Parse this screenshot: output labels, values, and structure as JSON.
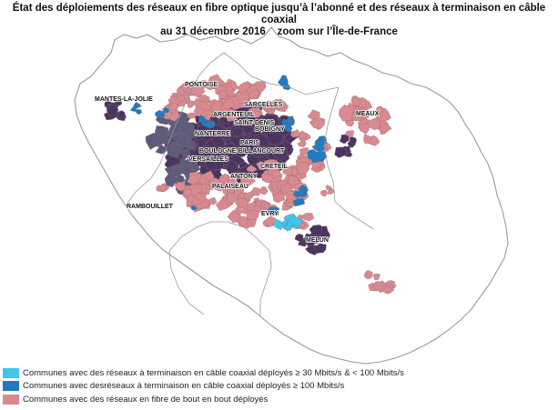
{
  "title": {
    "line1": "État des déploiements des réseaux en fibre optique jusqu’à l’abonné et des réseaux à terminaison en câble coaxial",
    "line2": "au 31 décembre 2016 – zoom sur l’Île-de-France"
  },
  "map": {
    "region": "Île-de-France",
    "cities": [
      {
        "id": "pontoise",
        "label": "PONTOISE"
      },
      {
        "id": "sarcelles",
        "label": "SARCELLES"
      },
      {
        "id": "mantes",
        "label": "MANTES-LA-JOLIE"
      },
      {
        "id": "argenteuil",
        "label": "ARGENTEUIL"
      },
      {
        "id": "saint-denis",
        "label": "SAINT-DENIS"
      },
      {
        "id": "bobigny",
        "label": "BOBIGNY"
      },
      {
        "id": "nanterre",
        "label": "NANTERRE"
      },
      {
        "id": "meaux",
        "label": "MEAUX"
      },
      {
        "id": "paris",
        "label": "PARIS"
      },
      {
        "id": "boulogne",
        "label": "BOULOGNE-BILLANCOURT"
      },
      {
        "id": "versailles",
        "label": "VERSAILLES"
      },
      {
        "id": "creteil",
        "label": "CRETEIL"
      },
      {
        "id": "antony",
        "label": "ANTONY"
      },
      {
        "id": "palaiseau",
        "label": "PALAISEAU"
      },
      {
        "id": "rambouillet",
        "label": "RAMBOUILLET"
      },
      {
        "id": "evry",
        "label": "EVRY"
      },
      {
        "id": "melun",
        "label": "MELUN"
      }
    ]
  },
  "legend": {
    "items": [
      {
        "id": "cable-30",
        "color": "#3fc7ef",
        "label": "Communes avec des réseaux à terminaison en câble coaxial déployés ≥ 30 Mbits/s & < 100 Mbits/s"
      },
      {
        "id": "cable-100",
        "color": "#1e7bc4",
        "label": "Communes avec desréseaux à terminaison en câble coaxial déployés ≥ 100 Mbits/s"
      },
      {
        "id": "fibre",
        "color": "#d98a8f",
        "label": "Communes avec des réseaux en fibre de bout en bout déployés"
      }
    ]
  },
  "colors": {
    "fibre_and_cable": "#4a3560",
    "fibre_and_cable_slate": "#5d5a7a",
    "fibre": "#d98a8f",
    "cable_100": "#1e7bc4",
    "cable_30": "#3fc7ef",
    "border": "#9a9a9a"
  }
}
